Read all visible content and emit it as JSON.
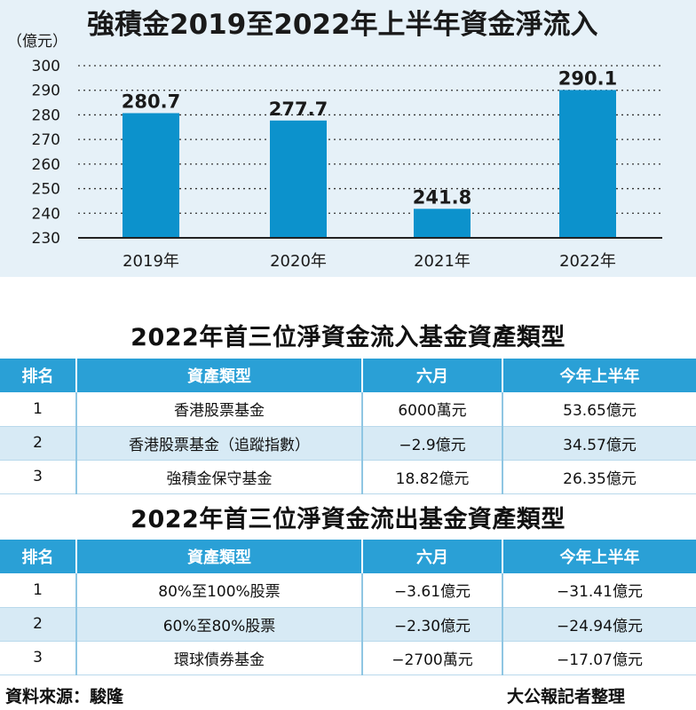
{
  "chart_data": {
    "type": "bar",
    "title": "強積金2019至2022年上半年資金淨流入",
    "unit_label": "（億元）",
    "ylabel": "（億元）",
    "xlabel": "",
    "categories": [
      "2019年",
      "2020年",
      "2021年",
      "2022年"
    ],
    "values": [
      280.7,
      277.7,
      241.8,
      290.1
    ],
    "value_labels": [
      "280.7",
      "277.7",
      "241.8",
      "290.1"
    ],
    "ylim": [
      230,
      300
    ],
    "yticks": [
      "230",
      "240",
      "250",
      "260",
      "270",
      "280",
      "290",
      "300"
    ],
    "grid": true,
    "legend": "none",
    "bar_color": "#0c92cc",
    "background_color": "#e6f1f8"
  },
  "inflow_table": {
    "title": "2022年首三位淨資金流入基金資產類型",
    "headers": [
      "排名",
      "資產類型",
      "六月",
      "今年上半年"
    ],
    "rows": [
      [
        "1",
        "香港股票基金",
        "6000萬元",
        "53.65億元"
      ],
      [
        "2",
        "香港股票基金（追蹤指數）",
        "−2.9億元",
        "34.57億元"
      ],
      [
        "3",
        "強積金保守基金",
        "18.82億元",
        "26.35億元"
      ]
    ]
  },
  "outflow_table": {
    "title": "2022年首三位淨資金流出基金資產類型",
    "headers": [
      "排名",
      "資產類型",
      "六月",
      "今年上半年"
    ],
    "rows": [
      [
        "1",
        "80%至100%股票",
        "−3.61億元",
        "−31.41億元"
      ],
      [
        "2",
        "60%至80%股票",
        "−2.30億元",
        "−24.94億元"
      ],
      [
        "3",
        "環球債券基金",
        "−2700萬元",
        "−17.07億元"
      ]
    ]
  },
  "footer": {
    "source": "資料來源：駿隆",
    "credit": "大公報記者整理"
  },
  "colors": {
    "header_blue": "#2aa0d6",
    "alt_row": "#d7eaf5"
  }
}
